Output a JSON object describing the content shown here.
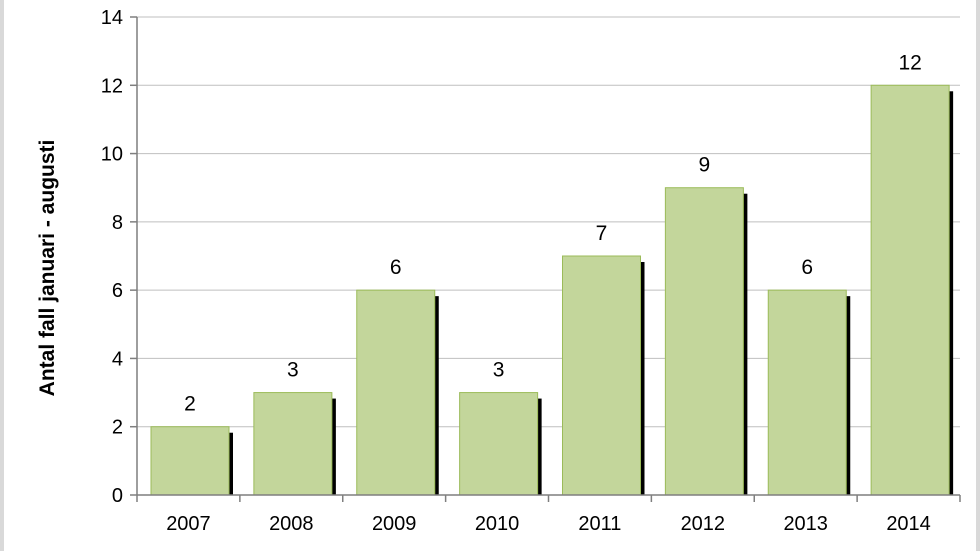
{
  "chart_data": {
    "type": "bar",
    "title": "",
    "xlabel": "",
    "ylabel": "Antal fall januari - augusti",
    "categories": [
      "2007",
      "2008",
      "2009",
      "2010",
      "2011",
      "2012",
      "2013",
      "2014"
    ],
    "values": [
      2,
      3,
      6,
      3,
      7,
      9,
      6,
      12
    ],
    "ylim": [
      0,
      14
    ],
    "yticks": [
      0,
      2,
      4,
      6,
      8,
      10,
      12,
      14
    ],
    "grid": true,
    "legend": "none",
    "data_labels": true,
    "colors": {
      "bar_fill": "#c3d69b",
      "bar_stroke": "#9bbb59",
      "bar_shadow": "#000000",
      "grid": "#bfbfbf",
      "axis": "#7f7f7f"
    }
  }
}
